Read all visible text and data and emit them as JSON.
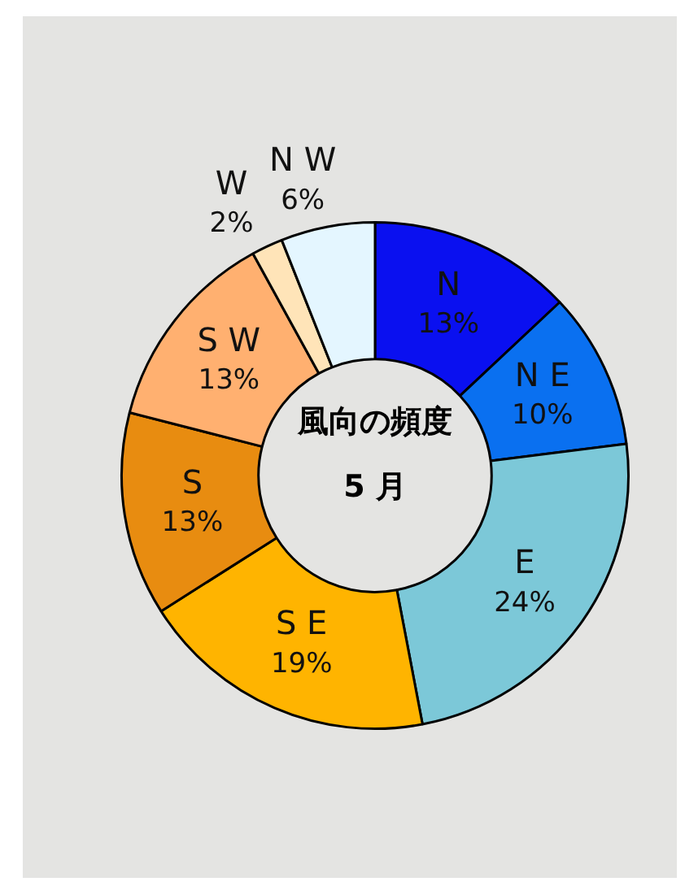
{
  "chart_data": {
    "type": "donut",
    "title": "風向の頻度",
    "subtitle": "5 月",
    "categories": [
      "N",
      "N E",
      "E",
      "S E",
      "S",
      "S W",
      "W",
      "N W"
    ],
    "values": [
      13,
      10,
      24,
      19,
      13,
      13,
      2,
      6
    ],
    "colors": [
      "#0a10f0",
      "#0a70f0",
      "#7cc8d8",
      "#ffb400",
      "#e88c10",
      "#ffb070",
      "#ffe4b8",
      "#e4f6ff"
    ],
    "value_labels": [
      "13%",
      "10%",
      "24%",
      "19%",
      "13%",
      "13%",
      "2%",
      "6%"
    ],
    "legend": false
  }
}
